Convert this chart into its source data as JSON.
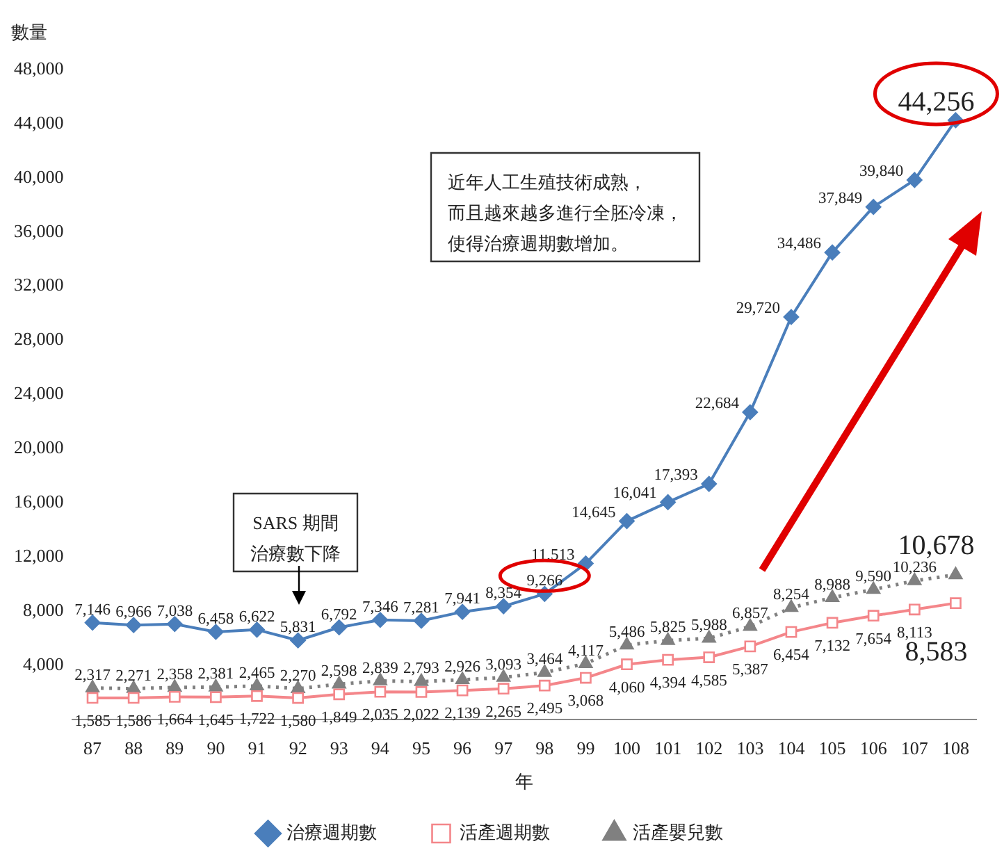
{
  "chart_data": {
    "type": "line",
    "ylabel": "數量",
    "xlabel": "年",
    "categories": [
      "87",
      "88",
      "89",
      "90",
      "91",
      "92",
      "93",
      "94",
      "95",
      "96",
      "97",
      "98",
      "99",
      "100",
      "101",
      "102",
      "103",
      "104",
      "105",
      "106",
      "107",
      "108"
    ],
    "series": [
      {
        "name": "治療週期數",
        "color": "#4a7ebb",
        "marker": "diamond",
        "line_style": "solid",
        "values": [
          7146,
          6966,
          7038,
          6458,
          6622,
          5831,
          6792,
          7346,
          7281,
          7941,
          8354,
          9266,
          11513,
          14645,
          16041,
          17393,
          22684,
          29720,
          34486,
          37849,
          39840,
          44256
        ],
        "value_labels": [
          "7,146",
          "6,966",
          "7,038",
          "6,458",
          "6,622",
          "5,831",
          "6,792",
          "7,346",
          "7,281",
          "7,941",
          "8,354",
          "9,266",
          "11,513",
          "14,645",
          "16,041",
          "17,393",
          "22,684",
          "29,720",
          "34,486",
          "37,849",
          "39,840",
          "44,256"
        ]
      },
      {
        "name": "活產週期數",
        "color": "#f4868a",
        "marker": "square",
        "line_style": "solid",
        "values": [
          1585,
          1586,
          1664,
          1645,
          1722,
          1580,
          1849,
          2035,
          2022,
          2139,
          2265,
          2495,
          3068,
          4060,
          4394,
          4585,
          5387,
          6454,
          7132,
          7654,
          8113,
          8583
        ],
        "value_labels": [
          "1,585",
          "1,586",
          "1,664",
          "1,645",
          "1,722",
          "1,580",
          "1,849",
          "2,035",
          "2,022",
          "2,139",
          "2,265",
          "2,495",
          "3,068",
          "4,060",
          "4,394",
          "4,585",
          "5,387",
          "6,454",
          "7,132",
          "7,654",
          "8,113",
          "8,583"
        ]
      },
      {
        "name": "活產嬰兒數",
        "color": "#808080",
        "marker": "triangle",
        "line_style": "dotted",
        "values": [
          2317,
          2271,
          2358,
          2381,
          2465,
          2270,
          2598,
          2839,
          2793,
          2926,
          3093,
          3464,
          4117,
          5486,
          5825,
          5988,
          6857,
          8254,
          8988,
          9590,
          10236,
          10678
        ],
        "value_labels": [
          "2,317",
          "2,271",
          "2,358",
          "2,381",
          "2,465",
          "2,270",
          "2,598",
          "2,839",
          "2,793",
          "2,926",
          "3,093",
          "3,464",
          "4,117",
          "5,486",
          "5,825",
          "5,988",
          "6,857",
          "8,254",
          "8,988",
          "9,590",
          "10,236",
          "10,678"
        ]
      }
    ],
    "ylim": [
      0,
      48000
    ],
    "yticks": [
      {
        "value": 4000,
        "label": "4,000"
      },
      {
        "value": 8000,
        "label": "8,000"
      },
      {
        "value": 12000,
        "label": "12,000"
      },
      {
        "value": 16000,
        "label": "16,000"
      },
      {
        "value": 20000,
        "label": "20,000"
      },
      {
        "value": 24000,
        "label": "24,000"
      },
      {
        "value": 28000,
        "label": "28,000"
      },
      {
        "value": 32000,
        "label": "32,000"
      },
      {
        "value": 36000,
        "label": "36,000"
      },
      {
        "value": 40000,
        "label": "40,000"
      },
      {
        "value": 44000,
        "label": "44,000"
      },
      {
        "value": 48000,
        "label": "48,000"
      }
    ],
    "grid": false,
    "legend": "bottom",
    "annotations": [
      "近年人工生殖技術成熟，而且越來越多進行全胚冷凍，使得治療週期數增加。",
      "SARS 期間治療數下降"
    ]
  }
}
